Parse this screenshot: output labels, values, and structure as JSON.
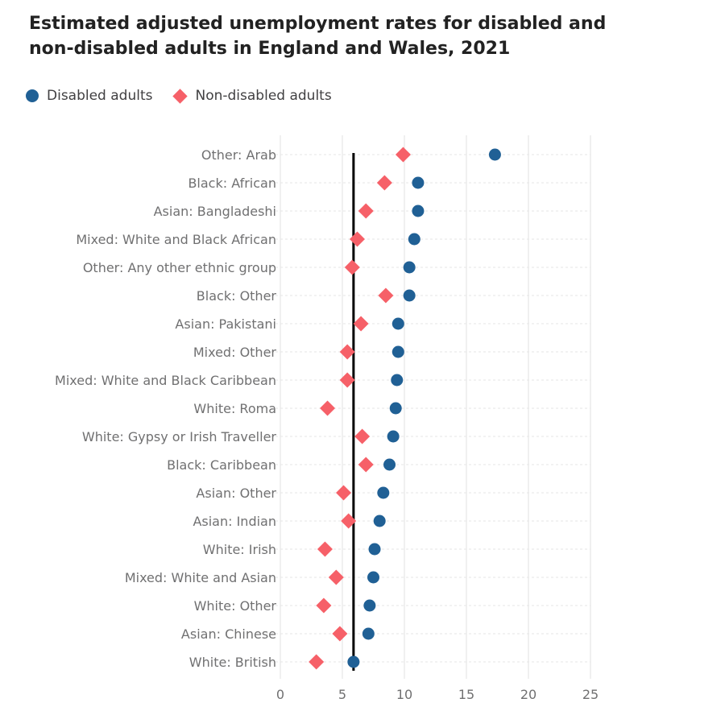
{
  "title": "Estimated adjusted unemployment rates for disabled and non-disabled adults in England and Wales, 2021",
  "legend": {
    "disabled": "Disabled adults",
    "non_disabled": "Non-disabled adults"
  },
  "colors": {
    "disabled": "#206095",
    "non_disabled": "#f66068",
    "reference_line": "#000000",
    "grid": "#e0e0e0",
    "label_text": "#707071"
  },
  "chart_data": {
    "type": "scatter",
    "orientation": "horizontal-dot-plot",
    "title": "Estimated adjusted unemployment rates for disabled and non-disabled adults in England and Wales, 2021",
    "xlabel": "",
    "ylabel": "",
    "xlim": [
      0,
      25
    ],
    "xticks": [
      0,
      5,
      10,
      15,
      20,
      25
    ],
    "grid": true,
    "legend_position": "top-left",
    "reference_line": {
      "x": 5.9
    },
    "categories": [
      "Other: Arab",
      "Black: African",
      "Asian: Bangladeshi",
      "Mixed: White and Black African",
      "Other: Any other ethnic group",
      "Black: Other",
      "Asian: Pakistani",
      "Mixed: Other",
      "Mixed: White and Black Caribbean",
      "White: Roma",
      "White: Gypsy or Irish Traveller",
      "Black: Caribbean",
      "Asian: Other",
      "Asian: Indian",
      "White: Irish",
      "Mixed: White and Asian",
      "White: Other",
      "Asian: Chinese",
      "White: British"
    ],
    "series": [
      {
        "name": "Disabled adults",
        "marker": "circle",
        "values": [
          17.3,
          11.1,
          11.1,
          10.8,
          10.4,
          10.4,
          9.5,
          9.5,
          9.4,
          9.3,
          9.1,
          8.8,
          8.3,
          8.0,
          7.6,
          7.5,
          7.2,
          7.1,
          5.9
        ]
      },
      {
        "name": "Non-disabled adults",
        "marker": "diamond",
        "values": [
          9.9,
          8.4,
          6.9,
          6.2,
          5.8,
          8.5,
          6.5,
          5.4,
          5.4,
          3.8,
          6.6,
          6.9,
          5.1,
          5.5,
          3.6,
          4.5,
          3.5,
          4.8,
          2.9
        ]
      }
    ]
  }
}
